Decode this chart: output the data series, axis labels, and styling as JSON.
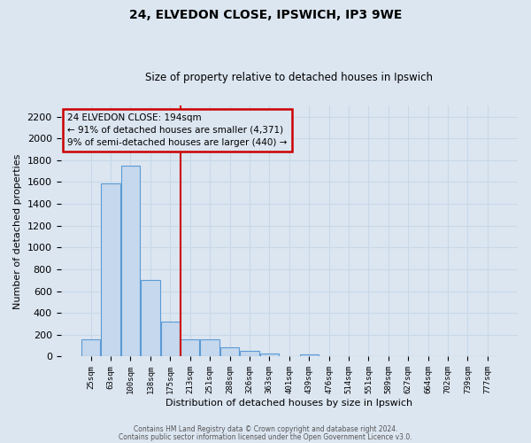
{
  "title": "24, ELVEDON CLOSE, IPSWICH, IP3 9WE",
  "subtitle": "Size of property relative to detached houses in Ipswich",
  "xlabel": "Distribution of detached houses by size in Ipswich",
  "ylabel": "Number of detached properties",
  "bar_labels": [
    "25sqm",
    "63sqm",
    "100sqm",
    "138sqm",
    "175sqm",
    "213sqm",
    "251sqm",
    "288sqm",
    "326sqm",
    "363sqm",
    "401sqm",
    "439sqm",
    "476sqm",
    "514sqm",
    "551sqm",
    "589sqm",
    "627sqm",
    "664sqm",
    "702sqm",
    "739sqm",
    "777sqm"
  ],
  "bar_values": [
    160,
    1590,
    1750,
    700,
    320,
    155,
    155,
    85,
    50,
    30,
    0,
    20,
    0,
    0,
    0,
    0,
    0,
    0,
    0,
    0,
    0
  ],
  "bar_color": "#c5d8ed",
  "bar_edge_color": "#5b9bd5",
  "grid_color": "#c8d8e8",
  "background_color": "#dce6f1",
  "annotation_line1": "24 ELVEDON CLOSE: 194sqm",
  "annotation_line2": "← 91% of detached houses are smaller (4,371)",
  "annotation_line3": "9% of semi-detached houses are larger (440) →",
  "annotation_box_edge": "#cc0000",
  "vline_color": "#cc0000",
  "vline_pos": 4.5,
  "ylim": [
    0,
    2300
  ],
  "yticks": [
    0,
    200,
    400,
    600,
    800,
    1000,
    1200,
    1400,
    1600,
    1800,
    2000,
    2200
  ],
  "footer_line1": "Contains HM Land Registry data © Crown copyright and database right 2024.",
  "footer_line2": "Contains public sector information licensed under the Open Government Licence v3.0."
}
